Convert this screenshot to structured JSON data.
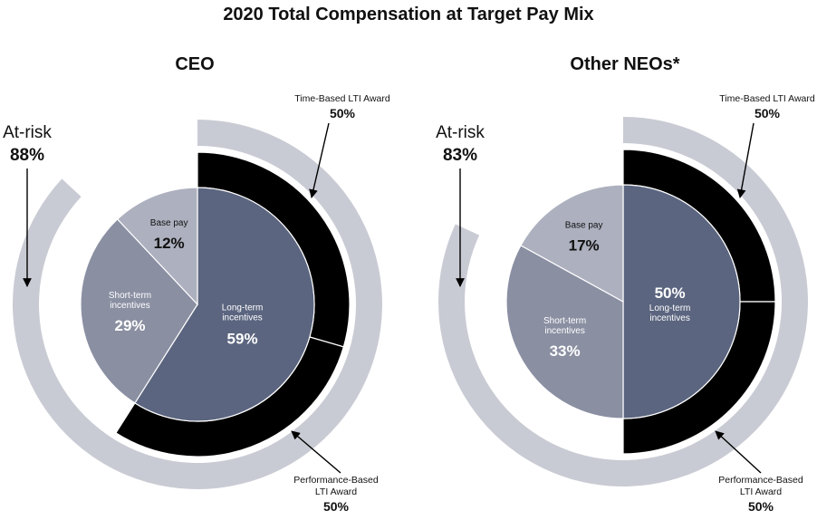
{
  "chart_data": {
    "type": "pie",
    "title": "2020 Total Compensation at Target Pay Mix",
    "colors": {
      "base_pay": "#adb0be",
      "short_term": "#8a8fa2",
      "long_term": "#5b657f",
      "lti_ring": "#000000",
      "at_risk_ring": "#c9cbd4",
      "slice_border": "#ffffff"
    },
    "charts": [
      {
        "title": "CEO",
        "at_risk": {
          "label": "At-risk",
          "value": "88%"
        },
        "slices": [
          {
            "key": "long_term",
            "label": "Long-term incentives",
            "label_lines": [
              "Long-term",
              "incentives"
            ],
            "value": 59,
            "value_text": "59%"
          },
          {
            "key": "short_term",
            "label": "Short-term incentives",
            "label_lines": [
              "Short-term",
              "incentives"
            ],
            "value": 29,
            "value_text": "29%"
          },
          {
            "key": "base_pay",
            "label": "Base pay",
            "label_lines": [
              "Base pay"
            ],
            "value": 12,
            "value_text": "12%"
          }
        ],
        "lti_split": [
          {
            "label": "Time-Based LTI Award",
            "label_lines": [
              "Time-Based LTI Award"
            ],
            "value": 50,
            "value_text": "50%"
          },
          {
            "label": "Performance-Based LTI Award",
            "label_lines": [
              "Performance-Based",
              "LTI Award"
            ],
            "value": 50,
            "value_text": "50%"
          }
        ]
      },
      {
        "title": "Other NEOs*",
        "at_risk": {
          "label": "At-risk",
          "value": "83%"
        },
        "slices": [
          {
            "key": "long_term",
            "label": "Long-term incentives",
            "label_lines": [
              "Long-term",
              "incentives"
            ],
            "value": 50,
            "value_text": "50%"
          },
          {
            "key": "short_term",
            "label": "Short-term incentives",
            "label_lines": [
              "Short-term",
              "incentives"
            ],
            "value": 33,
            "value_text": "33%"
          },
          {
            "key": "base_pay",
            "label": "Base pay",
            "label_lines": [
              "Base pay"
            ],
            "value": 17,
            "value_text": "17%"
          }
        ],
        "lti_split": [
          {
            "label": "Time-Based LTI Award",
            "label_lines": [
              "Time-Based LTI Award"
            ],
            "value": 50,
            "value_text": "50%"
          },
          {
            "label": "Performance-Based LTI Award",
            "label_lines": [
              "Performance-Based",
              "LTI Award"
            ],
            "value": 50,
            "value_text": "50%"
          }
        ]
      }
    ]
  }
}
